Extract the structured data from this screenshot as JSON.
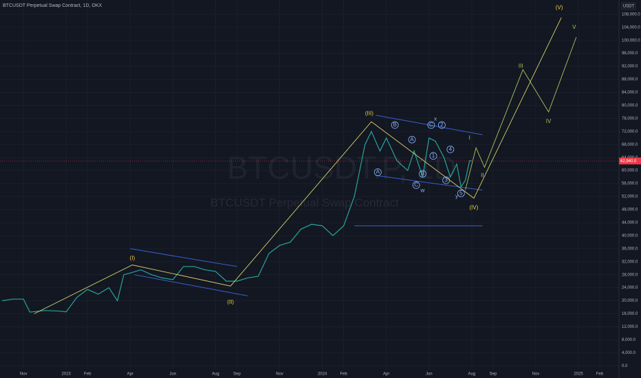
{
  "chart_data": {
    "type": "line",
    "title": "BTCUSDT Perpetual Swap Contract, 1D, OKX",
    "currency": "USDT",
    "watermark": "BTCUSDT.P, 1D",
    "watermark_subtitle": "BTCUSDT Perpetual Swap Contract",
    "color": "#26a69a",
    "x": [
      0,
      0.5,
      1,
      1.3,
      2,
      2.7,
      3,
      3.5,
      4,
      4.5,
      5,
      5.4,
      5.7,
      6,
      6.5,
      7,
      7.5,
      8,
      8.5,
      9,
      9.5,
      10,
      10.5,
      11,
      11.5,
      12,
      12.5,
      13,
      13.5,
      14,
      14.5,
      15,
      15.5,
      16,
      16.5,
      17,
      17.3,
      17.7,
      18,
      18.5,
      19,
      19.3,
      19.7,
      20,
      20.3,
      20.7,
      21,
      21.3,
      21.5,
      21.7,
      21.9,
      22
    ],
    "values": [
      20000,
      20500,
      20500,
      16500,
      17000,
      16800,
      16600,
      21000,
      23500,
      22000,
      24000,
      20000,
      28000,
      28500,
      29500,
      28000,
      27000,
      26500,
      30500,
      30500,
      29500,
      29000,
      26000,
      26000,
      27000,
      27500,
      34500,
      37000,
      38000,
      42000,
      43500,
      43000,
      40000,
      43000,
      52000,
      68000,
      72000,
      66000,
      70000,
      63000,
      60000,
      66000,
      58000,
      70000,
      69000,
      64000,
      58000,
      62000,
      55000,
      57000,
      63000,
      63000
    ],
    "last_price": {
      "value": 62940,
      "label": "62,940.0"
    },
    "xlim": [
      -0.1,
      28.9
    ],
    "xticks": [
      {
        "value": 1,
        "label": "Nov"
      },
      {
        "value": 3,
        "label": "2023"
      },
      {
        "value": 4,
        "label": "Feb"
      },
      {
        "value": 6,
        "label": "Apr"
      },
      {
        "value": 8,
        "label": "Jun"
      },
      {
        "value": 10,
        "label": "Aug"
      },
      {
        "value": 11,
        "label": "Sep"
      },
      {
        "value": 13,
        "label": "Nov"
      },
      {
        "value": 15,
        "label": "2024"
      },
      {
        "value": 16,
        "label": "Feb"
      },
      {
        "value": 18,
        "label": "Apr"
      },
      {
        "value": 20,
        "label": "Jun"
      },
      {
        "value": 22,
        "label": "Aug"
      },
      {
        "value": 23,
        "label": "Sep"
      },
      {
        "value": 25,
        "label": "Nov"
      },
      {
        "value": 27,
        "label": "2025"
      },
      {
        "value": 28,
        "label": "Feb"
      }
    ],
    "ylim": [
      -1000,
      112400
    ],
    "yticks": [
      {
        "value": 0,
        "label": "0.0"
      },
      {
        "value": 4000,
        "label": "4,000.0"
      },
      {
        "value": 8000,
        "label": "8,000.0"
      },
      {
        "value": 12000,
        "label": "12,000.0"
      },
      {
        "value": 16000,
        "label": "16,000.0"
      },
      {
        "value": 20000,
        "label": "20,000.0"
      },
      {
        "value": 24000,
        "label": "24,000.0"
      },
      {
        "value": 28000,
        "label": "28,000.0"
      },
      {
        "value": 32000,
        "label": "32,000.0"
      },
      {
        "value": 36000,
        "label": "36,000.0"
      },
      {
        "value": 40000,
        "label": "40,000.0"
      },
      {
        "value": 44000,
        "label": "44,000.0"
      },
      {
        "value": 48000,
        "label": "48,000.0"
      },
      {
        "value": 52000,
        "label": "52,000.0"
      },
      {
        "value": 56000,
        "label": "56,000.0"
      },
      {
        "value": 60000,
        "label": "60,000.0"
      },
      {
        "value": 64000,
        "label": "64,000.0"
      },
      {
        "value": 68000,
        "label": "68,000.0"
      },
      {
        "value": 72000,
        "label": "72,000.0"
      },
      {
        "value": 76000,
        "label": "76,000.0"
      },
      {
        "value": 80000,
        "label": "80,000.0"
      },
      {
        "value": 84000,
        "label": "84,000.0"
      },
      {
        "value": 88000,
        "label": "88,000.0"
      },
      {
        "value": 92000,
        "label": "92,000.0"
      },
      {
        "value": 96000,
        "label": "96,000.0"
      },
      {
        "value": 100000,
        "label": "100,000.0"
      },
      {
        "value": 104000,
        "label": "104,000.0"
      },
      {
        "value": 108000,
        "label": "108,000.0"
      }
    ],
    "grid": true,
    "waves": [
      {
        "color": "#d8d26a",
        "x": [
          1.5,
          6.1,
          10.7,
          17.3,
          22.1,
          26.2
        ],
        "y": [
          16000,
          31000,
          24500,
          75000,
          51500,
          107000
        ]
      },
      {
        "color": "#a8c95a",
        "x": [
          21.7,
          22.2,
          22.6,
          24.4,
          25.6,
          26.9
        ],
        "y": [
          54000,
          67000,
          61000,
          91000,
          78000,
          101000
        ]
      }
    ],
    "channels": [
      {
        "color": "#3a5fd0",
        "x": [
          6,
          11
        ],
        "y": [
          36000,
          30500
        ]
      },
      {
        "color": "#3a5fd0",
        "x": [
          6.2,
          11.5
        ],
        "y": [
          28000,
          21500
        ]
      },
      {
        "color": "#3a5fd0",
        "x": [
          17.5,
          22.5
        ],
        "y": [
          77000,
          71000
        ]
      },
      {
        "color": "#3a5fd0",
        "x": [
          17.5,
          22.5
        ],
        "y": [
          58500,
          54000
        ]
      },
      {
        "color": "#3a5fd0",
        "x": [
          16.5,
          22.5
        ],
        "y": [
          43000,
          43000
        ]
      }
    ],
    "annotations": [
      {
        "text": "(I)",
        "x": 6.1,
        "y": 33000,
        "color": "#f0d040"
      },
      {
        "text": "(II)",
        "x": 10.7,
        "y": 19500,
        "color": "#f0d040"
      },
      {
        "text": "(III)",
        "x": 17.2,
        "y": 77500,
        "color": "#f0d040"
      },
      {
        "text": "(IV)",
        "x": 22.1,
        "y": 48500,
        "color": "#f0d040"
      },
      {
        "text": "(V)",
        "x": 26.1,
        "y": 110000,
        "color": "#f0d040"
      },
      {
        "text": "I",
        "x": 21.9,
        "y": 70000,
        "color": "#9ccc50"
      },
      {
        "text": "II",
        "x": 22.5,
        "y": 58500,
        "color": "#9ccc50"
      },
      {
        "text": "III",
        "x": 24.3,
        "y": 92000,
        "color": "#9ccc50"
      },
      {
        "text": "IV",
        "x": 25.6,
        "y": 75000,
        "color": "#9ccc50"
      },
      {
        "text": "V",
        "x": 26.8,
        "y": 104000,
        "color": "#9ccc50"
      },
      {
        "text": "A",
        "x": 17.6,
        "y": 59500,
        "color": "#8ab4ff",
        "circled": true
      },
      {
        "text": "B",
        "x": 18.4,
        "y": 74000,
        "color": "#8ab4ff",
        "circled": true
      },
      {
        "text": "A",
        "x": 19.2,
        "y": 69500,
        "color": "#8ab4ff",
        "circled": true
      },
      {
        "text": "B",
        "x": 19.7,
        "y": 59000,
        "color": "#8ab4ff",
        "circled": true
      },
      {
        "text": "C",
        "x": 19.4,
        "y": 55500,
        "color": "#8ab4ff",
        "circled": true
      },
      {
        "text": "w",
        "x": 19.7,
        "y": 53800,
        "color": "#8ab4ff"
      },
      {
        "text": "C",
        "x": 20.1,
        "y": 74000,
        "color": "#8ab4ff",
        "circled": true
      },
      {
        "text": "x",
        "x": 20.3,
        "y": 75800,
        "color": "#8ab4ff"
      },
      {
        "text": "2",
        "x": 20.6,
        "y": 74000,
        "color": "#8ab4ff",
        "circled": true
      },
      {
        "text": "1",
        "x": 20.2,
        "y": 64500,
        "color": "#8ab4ff",
        "circled": true
      },
      {
        "text": "4",
        "x": 21.0,
        "y": 66500,
        "color": "#8ab4ff",
        "circled": true
      },
      {
        "text": "3",
        "x": 20.8,
        "y": 57000,
        "color": "#8ab4ff",
        "circled": true
      },
      {
        "text": "y",
        "x": 21.3,
        "y": 52000,
        "color": "#8ab4ff"
      },
      {
        "text": "5",
        "x": 21.5,
        "y": 53000,
        "color": "#8ab4ff",
        "circled": true
      }
    ]
  }
}
